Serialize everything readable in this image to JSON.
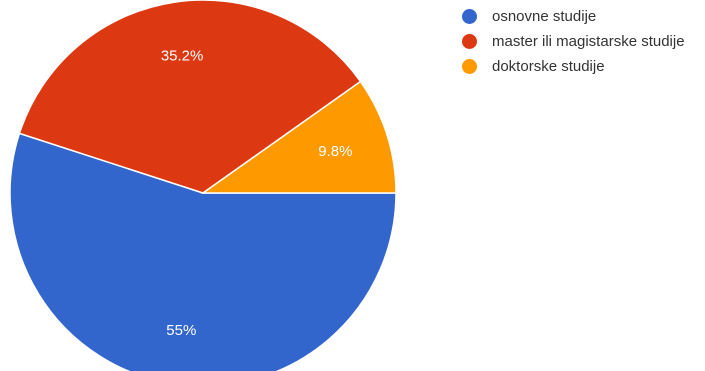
{
  "chart_data": {
    "type": "pie",
    "title": "",
    "legend_position": "right",
    "start_angle_deg": 0,
    "direction": "clockwise",
    "slices": [
      {
        "label": "osnovne studije",
        "value": 55,
        "display": "55%",
        "color": "#3366cc"
      },
      {
        "label": "master ili magistarske studije",
        "value": 35.2,
        "display": "35.2%",
        "color": "#dc3912"
      },
      {
        "label": "doktorske studije",
        "value": 9.8,
        "display": "9.8%",
        "color": "#ff9900"
      }
    ]
  }
}
